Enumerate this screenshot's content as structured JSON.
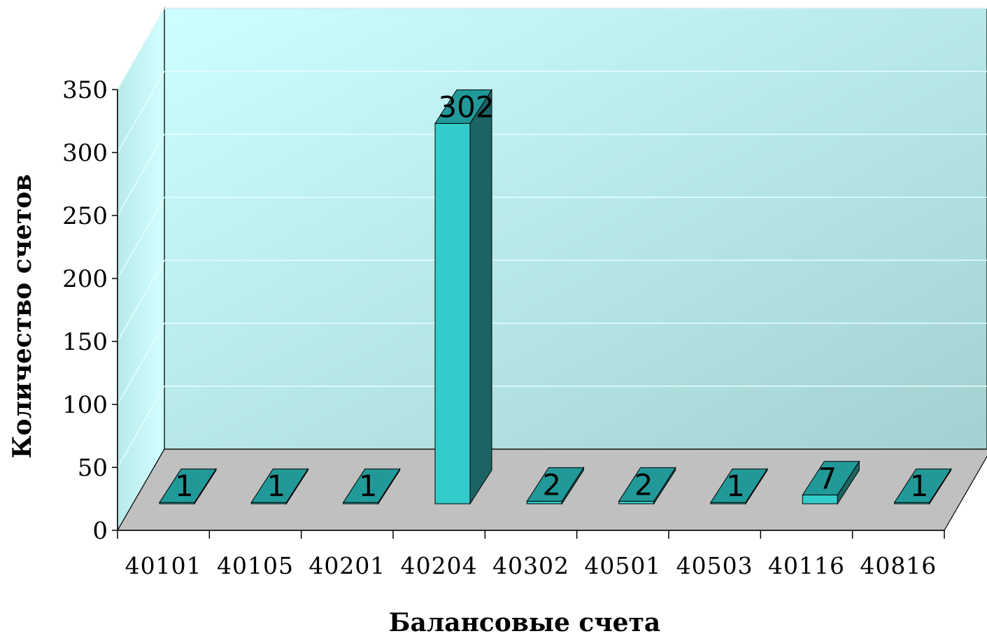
{
  "chart_data": {
    "type": "bar",
    "categories": [
      "40101",
      "40105",
      "40201",
      "40204",
      "40302",
      "40501",
      "40503",
      "40116",
      "40816"
    ],
    "values": [
      1,
      1,
      1,
      302,
      2,
      2,
      1,
      7,
      1
    ],
    "data_labels": [
      "1",
      "1",
      "1",
      "302",
      "2",
      "2",
      "1",
      "7",
      "1"
    ],
    "xlabel": "Балансовые счета",
    "ylabel": "Количество счетов",
    "ylim": [
      0,
      350
    ],
    "yticks": [
      0,
      50,
      100,
      150,
      200,
      250,
      300,
      350
    ],
    "grid": true,
    "legend": "none",
    "style": "3d-column",
    "colors": {
      "bar_front": "#33cccc",
      "bar_top": "#229999",
      "bar_side": "#1c6464",
      "back_wall_light": "#ccffff",
      "back_wall_dark": "#a3d1d1",
      "side_wall": "#c4f0f0",
      "floor": "#c0c0c0"
    }
  }
}
